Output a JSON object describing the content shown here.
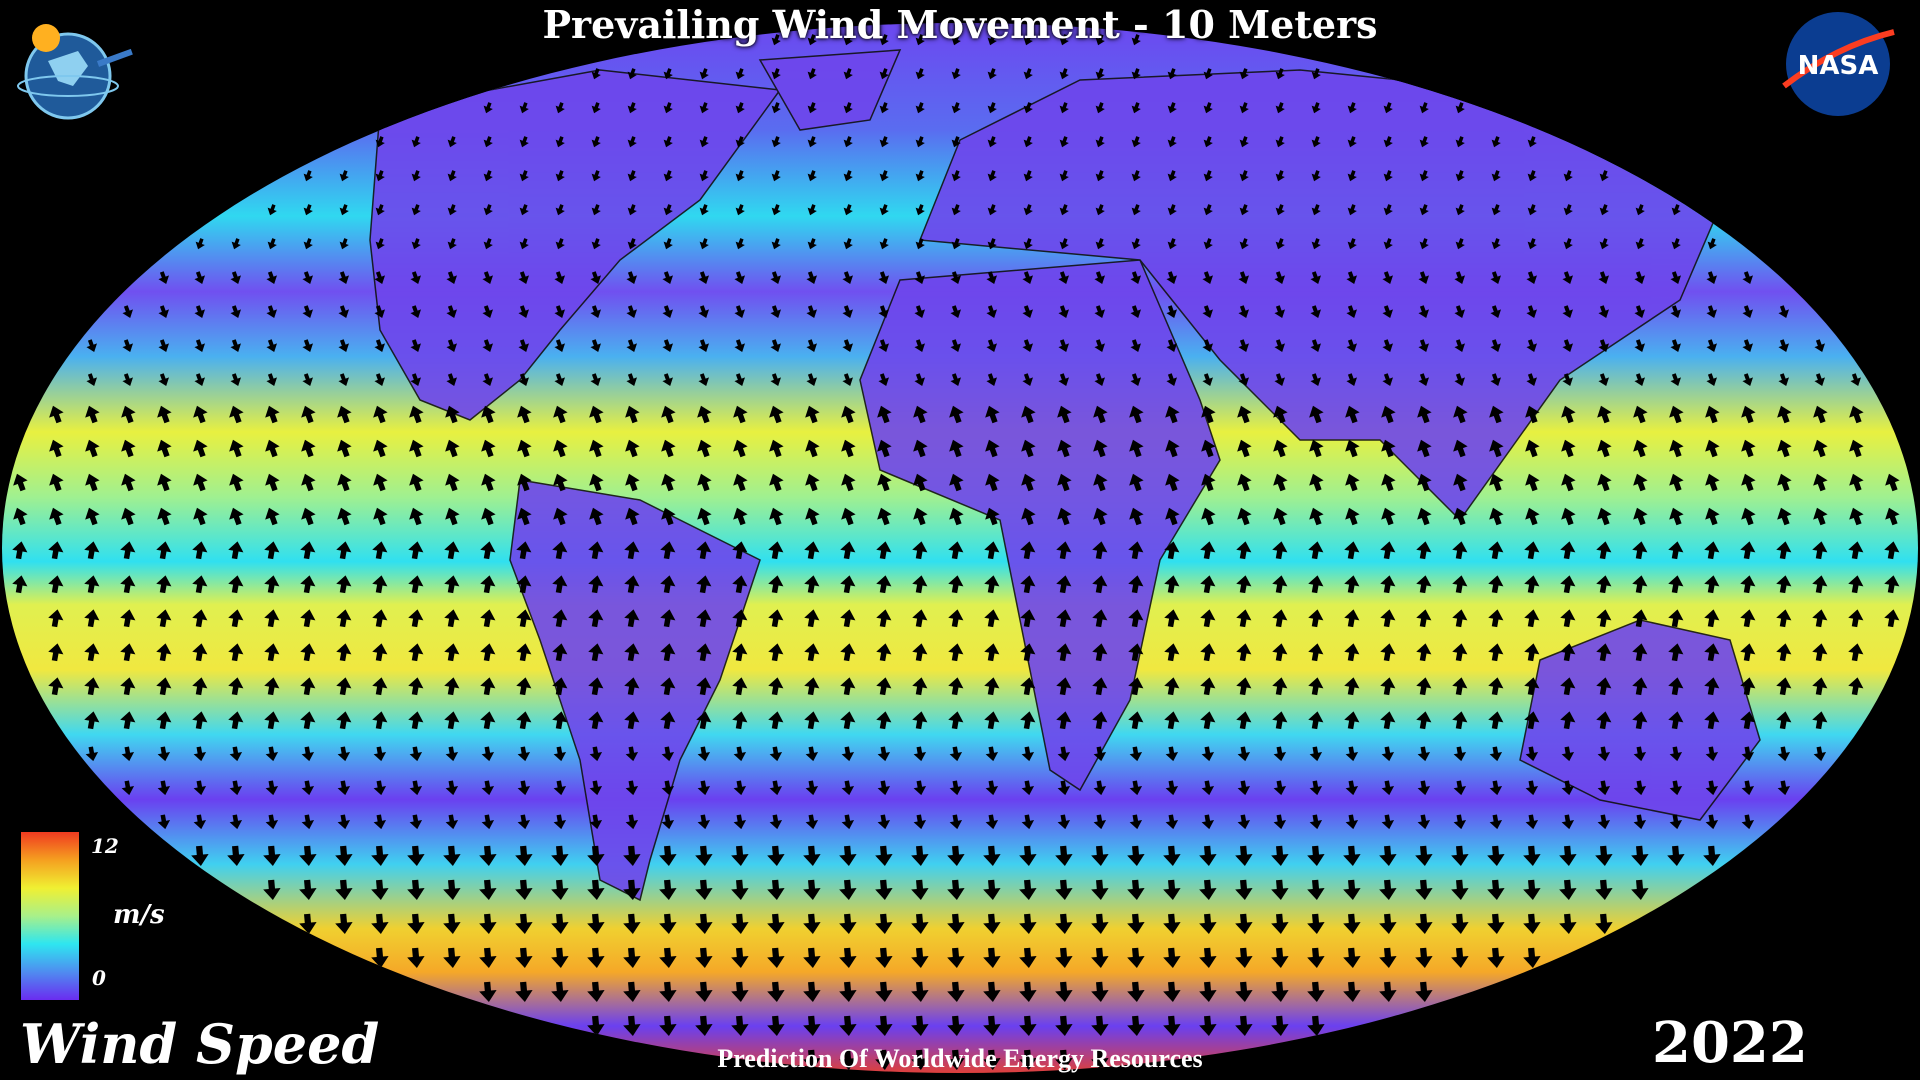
{
  "header": {
    "title": "Prevailing Wind Movement - 10 Meters"
  },
  "footer": {
    "text": "Prediction Of Worldwide Energy Resources"
  },
  "variable_label": "Wind Speed",
  "year": "2022",
  "legend": {
    "max": "12",
    "min": "0",
    "unit": "m/s",
    "colors": [
      "#6a2cf0",
      "#4f8cf0",
      "#2ee6f0",
      "#a8f08a",
      "#f0f032",
      "#f5a020",
      "#f03a20"
    ]
  },
  "logos": {
    "left": "power-globe-logo",
    "right": "NASA"
  },
  "map": {
    "projection": "robinson-like oval",
    "ocean_color_low": "#6a3cf0",
    "arrow_color": "#000000"
  }
}
